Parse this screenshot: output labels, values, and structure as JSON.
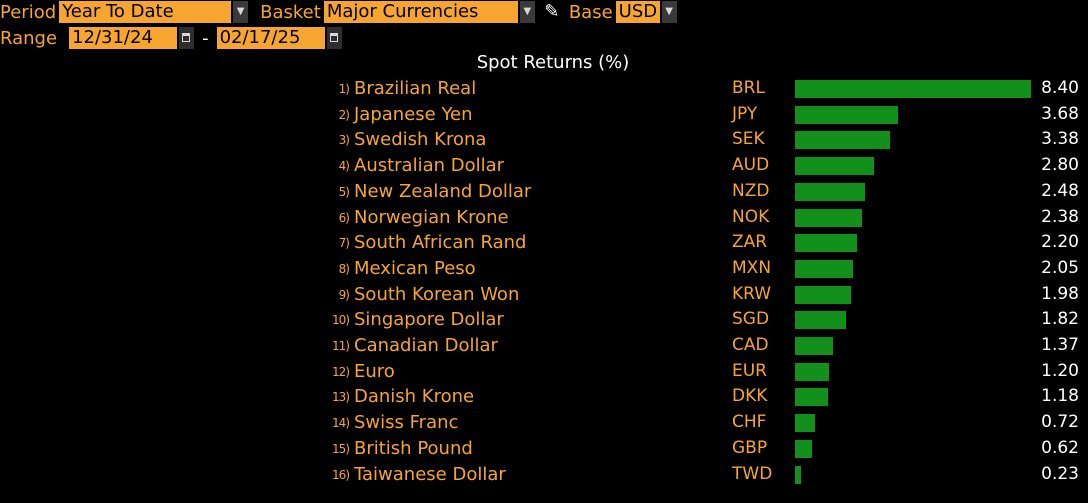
{
  "controls": {
    "period_label": "Period",
    "period_value": "Year To Date",
    "basket_label": "Basket",
    "basket_value": "Major Currencies",
    "base_label": "Base",
    "base_value": "USD",
    "range_label": "Range",
    "range_start": "12/31/24",
    "range_separator": "-",
    "range_end": "02/17/25"
  },
  "icons": {
    "dropdown": "chevron-down-icon",
    "calendar": "calendar-icon",
    "edit": "pencil-icon"
  },
  "colors": {
    "accent": "#f7a531",
    "bar": "#13901c",
    "background": "#000000",
    "value_text": "#ffffff"
  },
  "chart_data": {
    "type": "bar",
    "orientation": "horizontal",
    "title": "Spot Returns (%)",
    "xlim": [
      0,
      8.4
    ],
    "grid": false,
    "ranks": [
      "1)",
      "2)",
      "3)",
      "4)",
      "5)",
      "6)",
      "7)",
      "8)",
      "9)",
      "10)",
      "11)",
      "12)",
      "13)",
      "14)",
      "15)",
      "16)"
    ],
    "categories": [
      "Brazilian Real",
      "Japanese Yen",
      "Swedish Krona",
      "Australian Dollar",
      "New Zealand Dollar",
      "Norwegian Krone",
      "South African Rand",
      "Mexican Peso",
      "South Korean Won",
      "Singapore Dollar",
      "Canadian Dollar",
      "Euro",
      "Danish Krone",
      "Swiss Franc",
      "British Pound",
      "Taiwanese Dollar"
    ],
    "codes": [
      "BRL",
      "JPY",
      "SEK",
      "AUD",
      "NZD",
      "NOK",
      "ZAR",
      "MXN",
      "KRW",
      "SGD",
      "CAD",
      "EUR",
      "DKK",
      "CHF",
      "GBP",
      "TWD"
    ],
    "values": [
      8.4,
      3.68,
      3.38,
      2.8,
      2.48,
      2.38,
      2.2,
      2.05,
      1.98,
      1.82,
      1.37,
      1.2,
      1.18,
      0.72,
      0.62,
      0.23
    ]
  }
}
